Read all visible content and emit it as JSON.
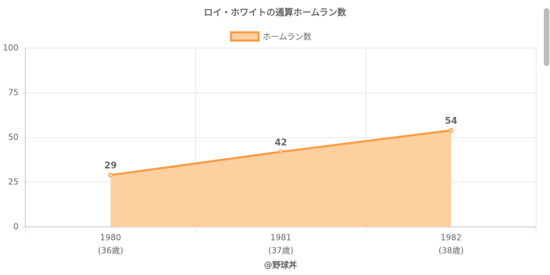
{
  "chart_data": {
    "type": "area",
    "title": "ロイ・ホワイトの通算ホームラン数",
    "categories": [
      "1980",
      "1981",
      "1982"
    ],
    "category_sublabels": [
      "(36歳)",
      "(37歳)",
      "(38歳)"
    ],
    "x_label": "@野球丼",
    "series": [
      {
        "name": "ホームラン数",
        "color": "#f89c45",
        "fill": "#fecf9f",
        "values": [
          29,
          42,
          54
        ]
      }
    ],
    "ylim": [
      0,
      100
    ],
    "yticks": [
      0,
      25,
      50,
      75,
      100
    ],
    "grid": true,
    "legend": "top"
  }
}
